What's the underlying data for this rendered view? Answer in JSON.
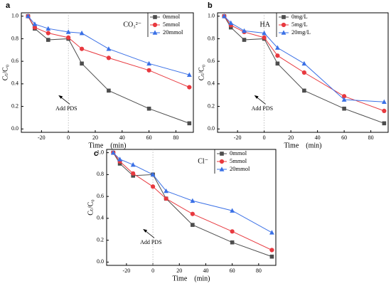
{
  "chart_data": [
    {
      "type": "line",
      "label": "a",
      "xlabel": "Time (min)",
      "ylabel": "Cₜ/C₀",
      "legend_title": "CO₃²⁻",
      "annotation": "Add PDS",
      "x": [
        -30,
        -25,
        -15,
        0,
        10,
        30,
        60,
        90
      ],
      "xlim": [
        -35,
        93
      ],
      "xticks": [
        -20,
        0,
        20,
        40,
        60,
        80
      ],
      "ylim": [
        -0.03,
        1.03
      ],
      "yticks": [
        {
          "value": 0,
          "label": "0.0"
        },
        0.2,
        0.4,
        0.6,
        0.8,
        {
          "value": 1,
          "label": "1.0"
        }
      ],
      "series": [
        {
          "name": "0mmol",
          "color": "#4d4d4d",
          "marker": "square",
          "values": [
            1.0,
            0.89,
            0.79,
            0.8,
            0.58,
            0.34,
            0.18,
            0.05
          ]
        },
        {
          "name": "5mmol",
          "color": "#e8393f",
          "marker": "circle",
          "values": [
            1.0,
            0.9,
            0.85,
            0.81,
            0.71,
            0.63,
            0.52,
            0.37
          ]
        },
        {
          "name": "20mmol",
          "color": "#3a70e6",
          "marker": "triangle",
          "values": [
            1.0,
            0.93,
            0.89,
            0.86,
            0.85,
            0.71,
            0.58,
            0.48
          ]
        }
      ]
    },
    {
      "type": "line",
      "label": "b",
      "xlabel": "Time (min)",
      "ylabel": "Cₜ/C₀",
      "legend_title": "HA",
      "annotation": "Add PDS",
      "x": [
        -30,
        -25,
        -15,
        0,
        10,
        30,
        60,
        90
      ],
      "xlim": [
        -35,
        93
      ],
      "xticks": [
        -20,
        0,
        20,
        40,
        60,
        80
      ],
      "ylim": [
        -0.03,
        1.03
      ],
      "yticks": [
        {
          "value": 0,
          "label": "0.0"
        },
        0.2,
        0.4,
        0.6,
        0.8,
        {
          "value": 1,
          "label": "1.0"
        }
      ],
      "series": [
        {
          "name": "0mg/L",
          "color": "#4d4d4d",
          "marker": "square",
          "values": [
            1.0,
            0.9,
            0.79,
            0.8,
            0.58,
            0.34,
            0.18,
            0.05
          ]
        },
        {
          "name": "5mg/L",
          "color": "#e8393f",
          "marker": "circle",
          "values": [
            1.0,
            0.92,
            0.86,
            0.81,
            0.65,
            0.5,
            0.29,
            0.16
          ]
        },
        {
          "name": "20mg/L",
          "color": "#3a70e6",
          "marker": "triangle",
          "values": [
            1.0,
            0.94,
            0.87,
            0.85,
            0.72,
            0.58,
            0.26,
            0.24
          ]
        }
      ]
    },
    {
      "type": "line",
      "label": "c",
      "xlabel": "Time (min)",
      "ylabel": "Cₜ/C₀",
      "legend_title": "Cl⁻",
      "annotation": "Add PDS",
      "x": [
        -30,
        -25,
        -15,
        0,
        10,
        30,
        60,
        90
      ],
      "xlim": [
        -35,
        93
      ],
      "xticks": [
        -20,
        0,
        20,
        40,
        60,
        80
      ],
      "ylim": [
        -0.03,
        1.03
      ],
      "yticks": [
        {
          "value": 0,
          "label": "0.0"
        },
        0.2,
        0.4,
        0.6,
        0.8,
        {
          "value": 1,
          "label": "1.0"
        }
      ],
      "series": [
        {
          "name": "0mmol",
          "color": "#4d4d4d",
          "marker": "square",
          "values": [
            1.0,
            0.9,
            0.79,
            0.8,
            0.58,
            0.34,
            0.18,
            0.05
          ]
        },
        {
          "name": "5mmol",
          "color": "#e8393f",
          "marker": "circle",
          "values": [
            1.0,
            0.92,
            0.81,
            0.69,
            0.58,
            0.44,
            0.28,
            0.11
          ]
        },
        {
          "name": "20mmol",
          "color": "#3a70e6",
          "marker": "triangle",
          "values": [
            1.0,
            0.94,
            0.89,
            0.8,
            0.65,
            0.56,
            0.47,
            0.27
          ]
        }
      ]
    }
  ]
}
